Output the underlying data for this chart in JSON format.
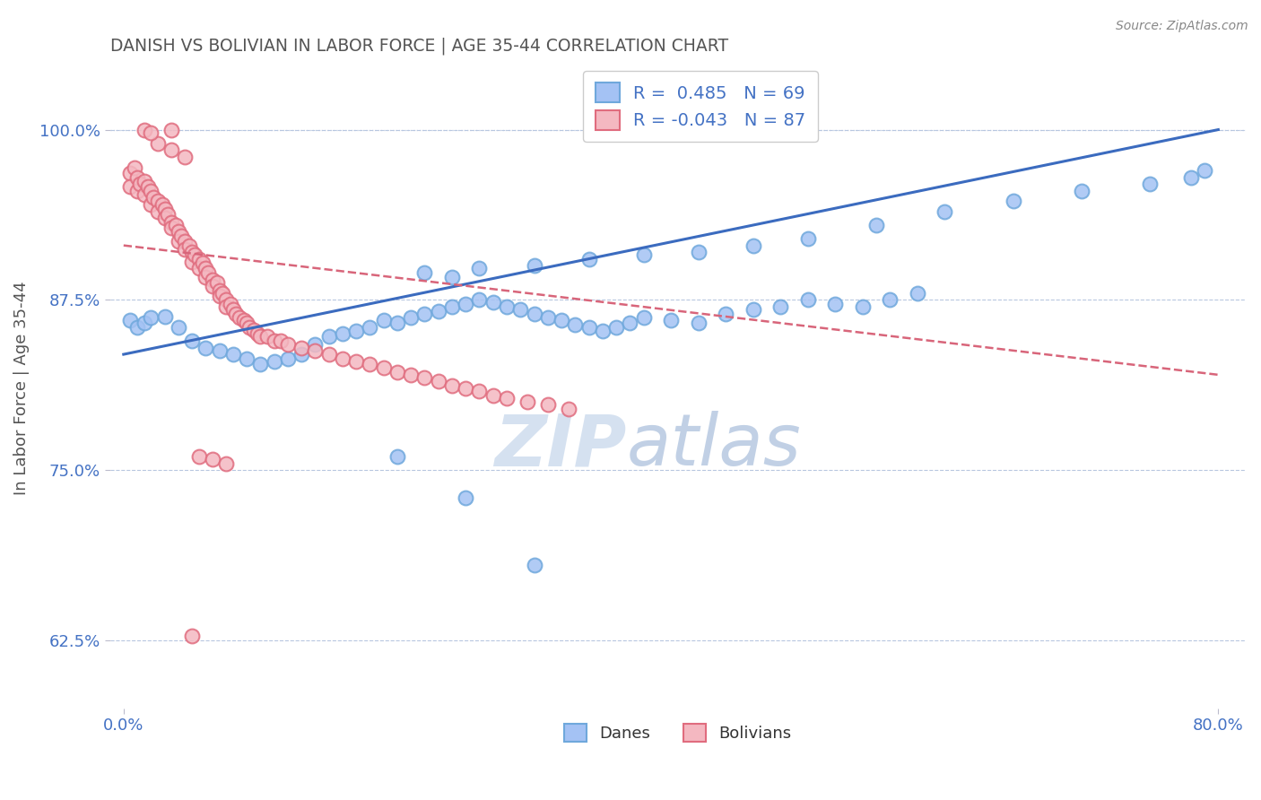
{
  "title": "DANISH VS BOLIVIAN IN LABOR FORCE | AGE 35-44 CORRELATION CHART",
  "source": "Source: ZipAtlas.com",
  "ylabel": "In Labor Force | Age 35-44",
  "xlim": [
    -0.01,
    0.82
  ],
  "ylim": [
    0.575,
    1.045
  ],
  "xtick_positions": [
    0.0,
    0.8
  ],
  "xticklabels": [
    "0.0%",
    "80.0%"
  ],
  "ytick_positions": [
    0.625,
    0.75,
    0.875,
    1.0
  ],
  "yticklabels": [
    "62.5%",
    "75.0%",
    "87.5%",
    "100.0%"
  ],
  "title_color": "#555555",
  "axis_tick_color": "#4472c4",
  "grid_color": "#b8c7e0",
  "blue_face": "#a4c2f4",
  "blue_edge": "#6fa8dc",
  "pink_face": "#f4b8c1",
  "pink_edge": "#e06c7e",
  "blue_line_color": "#3b6bbf",
  "pink_line_color": "#d8657a",
  "legend_blue_R": "0.485",
  "legend_blue_N": "69",
  "legend_pink_R": "-0.043",
  "legend_pink_N": "87",
  "legend_label1": "Danes",
  "legend_label2": "Bolivians",
  "watermark_zip": "ZIP",
  "watermark_atlas": "atlas",
  "blue_line_x0": 0.0,
  "blue_line_y0": 0.835,
  "blue_line_x1": 0.8,
  "blue_line_y1": 1.0,
  "pink_line_x0": 0.0,
  "pink_line_y0": 0.915,
  "pink_line_x1": 0.8,
  "pink_line_y1": 0.82,
  "danes_x": [
    0.005,
    0.01,
    0.015,
    0.02,
    0.03,
    0.04,
    0.05,
    0.06,
    0.07,
    0.08,
    0.09,
    0.1,
    0.11,
    0.12,
    0.13,
    0.14,
    0.15,
    0.16,
    0.17,
    0.18,
    0.19,
    0.2,
    0.21,
    0.22,
    0.23,
    0.24,
    0.25,
    0.26,
    0.27,
    0.28,
    0.29,
    0.3,
    0.31,
    0.32,
    0.33,
    0.34,
    0.35,
    0.36,
    0.37,
    0.38,
    0.4,
    0.42,
    0.44,
    0.46,
    0.48,
    0.5,
    0.52,
    0.54,
    0.56,
    0.58,
    0.22,
    0.24,
    0.26,
    0.3,
    0.34,
    0.38,
    0.42,
    0.46,
    0.5,
    0.55,
    0.6,
    0.65,
    0.7,
    0.75,
    0.78,
    0.79,
    0.2,
    0.25,
    0.3
  ],
  "danes_y": [
    0.86,
    0.855,
    0.858,
    0.862,
    0.863,
    0.855,
    0.845,
    0.84,
    0.838,
    0.835,
    0.832,
    0.828,
    0.83,
    0.832,
    0.835,
    0.842,
    0.848,
    0.85,
    0.852,
    0.855,
    0.86,
    0.858,
    0.862,
    0.865,
    0.867,
    0.87,
    0.872,
    0.875,
    0.873,
    0.87,
    0.868,
    0.865,
    0.862,
    0.86,
    0.857,
    0.855,
    0.852,
    0.855,
    0.858,
    0.862,
    0.86,
    0.858,
    0.865,
    0.868,
    0.87,
    0.875,
    0.872,
    0.87,
    0.875,
    0.88,
    0.895,
    0.892,
    0.898,
    0.9,
    0.905,
    0.908,
    0.91,
    0.915,
    0.92,
    0.93,
    0.94,
    0.948,
    0.955,
    0.96,
    0.965,
    0.97,
    0.76,
    0.73,
    0.68
  ],
  "bolivians_x": [
    0.005,
    0.005,
    0.008,
    0.01,
    0.01,
    0.012,
    0.015,
    0.015,
    0.018,
    0.02,
    0.02,
    0.022,
    0.025,
    0.025,
    0.028,
    0.03,
    0.03,
    0.032,
    0.035,
    0.035,
    0.038,
    0.04,
    0.04,
    0.042,
    0.045,
    0.045,
    0.048,
    0.05,
    0.05,
    0.052,
    0.055,
    0.055,
    0.058,
    0.06,
    0.06,
    0.062,
    0.065,
    0.065,
    0.068,
    0.07,
    0.07,
    0.072,
    0.075,
    0.075,
    0.078,
    0.08,
    0.082,
    0.085,
    0.088,
    0.09,
    0.092,
    0.095,
    0.098,
    0.1,
    0.105,
    0.11,
    0.115,
    0.12,
    0.13,
    0.14,
    0.15,
    0.16,
    0.17,
    0.18,
    0.19,
    0.2,
    0.21,
    0.22,
    0.23,
    0.24,
    0.25,
    0.26,
    0.27,
    0.28,
    0.295,
    0.31,
    0.325,
    0.025,
    0.035,
    0.045,
    0.055,
    0.065,
    0.075,
    0.015,
    0.02,
    0.035,
    0.05
  ],
  "bolivians_y": [
    0.968,
    0.958,
    0.972,
    0.965,
    0.955,
    0.96,
    0.962,
    0.952,
    0.958,
    0.955,
    0.945,
    0.95,
    0.948,
    0.94,
    0.945,
    0.942,
    0.935,
    0.938,
    0.932,
    0.928,
    0.93,
    0.925,
    0.918,
    0.922,
    0.918,
    0.912,
    0.915,
    0.91,
    0.903,
    0.908,
    0.905,
    0.898,
    0.902,
    0.898,
    0.892,
    0.895,
    0.89,
    0.885,
    0.888,
    0.882,
    0.878,
    0.88,
    0.875,
    0.87,
    0.872,
    0.868,
    0.865,
    0.862,
    0.86,
    0.858,
    0.855,
    0.853,
    0.85,
    0.848,
    0.848,
    0.845,
    0.845,
    0.842,
    0.84,
    0.838,
    0.835,
    0.832,
    0.83,
    0.828,
    0.825,
    0.822,
    0.82,
    0.818,
    0.815,
    0.812,
    0.81,
    0.808,
    0.805,
    0.803,
    0.8,
    0.798,
    0.795,
    0.99,
    0.985,
    0.98,
    0.76,
    0.758,
    0.755,
    1.0,
    0.998,
    1.0,
    0.628
  ]
}
